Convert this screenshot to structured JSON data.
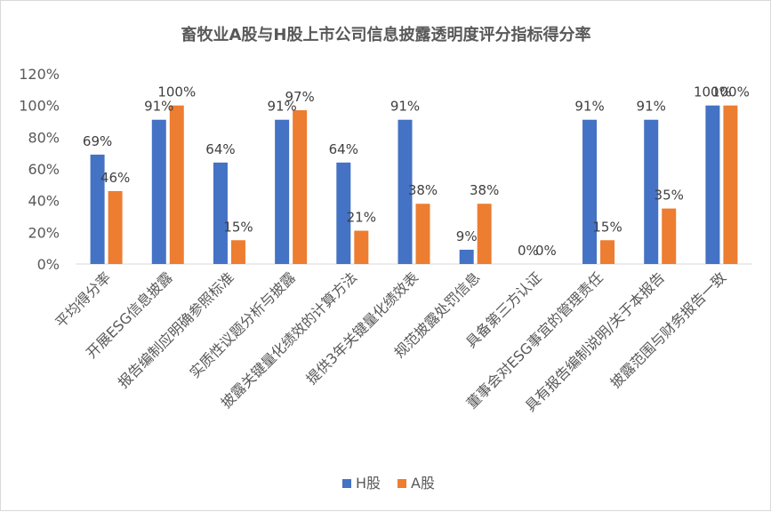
{
  "chart_data": {
    "type": "bar",
    "title": "畜牧业A股与H股上市公司信息披露透明度评分指标得分率",
    "categories": [
      "平均得分率",
      "开展ESG信息披露",
      "报告编制应明确参照标准",
      "实质性议题分析与披露",
      "披露关键量化绩效的计算方法",
      "提供3年关键量化绩效表",
      "规范披露处罚信息",
      "具备第三方认证",
      "董事会对ESG事宜的管理责任",
      "具有报告编制说明/关于本报告",
      "披露范围与财务报告一致"
    ],
    "series": [
      {
        "name": "H股",
        "color": "#4472C4",
        "values": [
          69,
          91,
          64,
          91,
          64,
          91,
          9,
          0,
          91,
          91,
          100
        ]
      },
      {
        "name": "A股",
        "color": "#ED7D31",
        "values": [
          46,
          100,
          15,
          97,
          21,
          38,
          38,
          0,
          15,
          35,
          100
        ]
      }
    ],
    "yticks": [
      "0%",
      "20%",
      "40%",
      "60%",
      "80%",
      "100%",
      "120%"
    ],
    "ylim": [
      0,
      120
    ],
    "grid": false,
    "legend_position": "bottom",
    "value_suffix": "%"
  }
}
